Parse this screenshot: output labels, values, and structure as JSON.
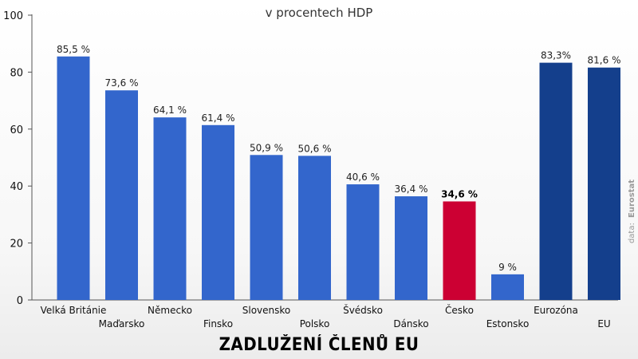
{
  "chart_data": {
    "type": "bar",
    "title": "ZADLUŽENÍ ČLENŮ EU",
    "subtitle": "v procentech HDP",
    "source_prefix": "data:",
    "source": "Eurostat",
    "ylim": [
      0,
      100
    ],
    "yticks": [
      0,
      20,
      40,
      60,
      80,
      100
    ],
    "grid": false,
    "categories": [
      "Velká Británie",
      "Maďarsko",
      "Německo",
      "Finsko",
      "Slovensko",
      "Polsko",
      "Švédsko",
      "Dánsko",
      "Česko",
      "Estonsko",
      "Eurozóna",
      "EU"
    ],
    "values": [
      85.5,
      73.6,
      64.1,
      61.4,
      50.9,
      50.6,
      40.6,
      36.4,
      34.6,
      9,
      83.3,
      81.6
    ],
    "value_labels": [
      "85,5 %",
      "73,6 %",
      "64,1 %",
      "61,4 %",
      "50,9 %",
      "50,6 %",
      "40,6 %",
      "36,4 %",
      "34,6 %",
      "9 %",
      "83,3%",
      "81,6 %"
    ],
    "bar_kinds": [
      "country",
      "country",
      "country",
      "country",
      "country",
      "country",
      "country",
      "country",
      "highlight",
      "country",
      "aggregate",
      "aggregate"
    ],
    "colors": {
      "country": "#3366cc",
      "highlight": "#cc0033",
      "aggregate": "#143f8c",
      "axis": "#555555"
    }
  }
}
